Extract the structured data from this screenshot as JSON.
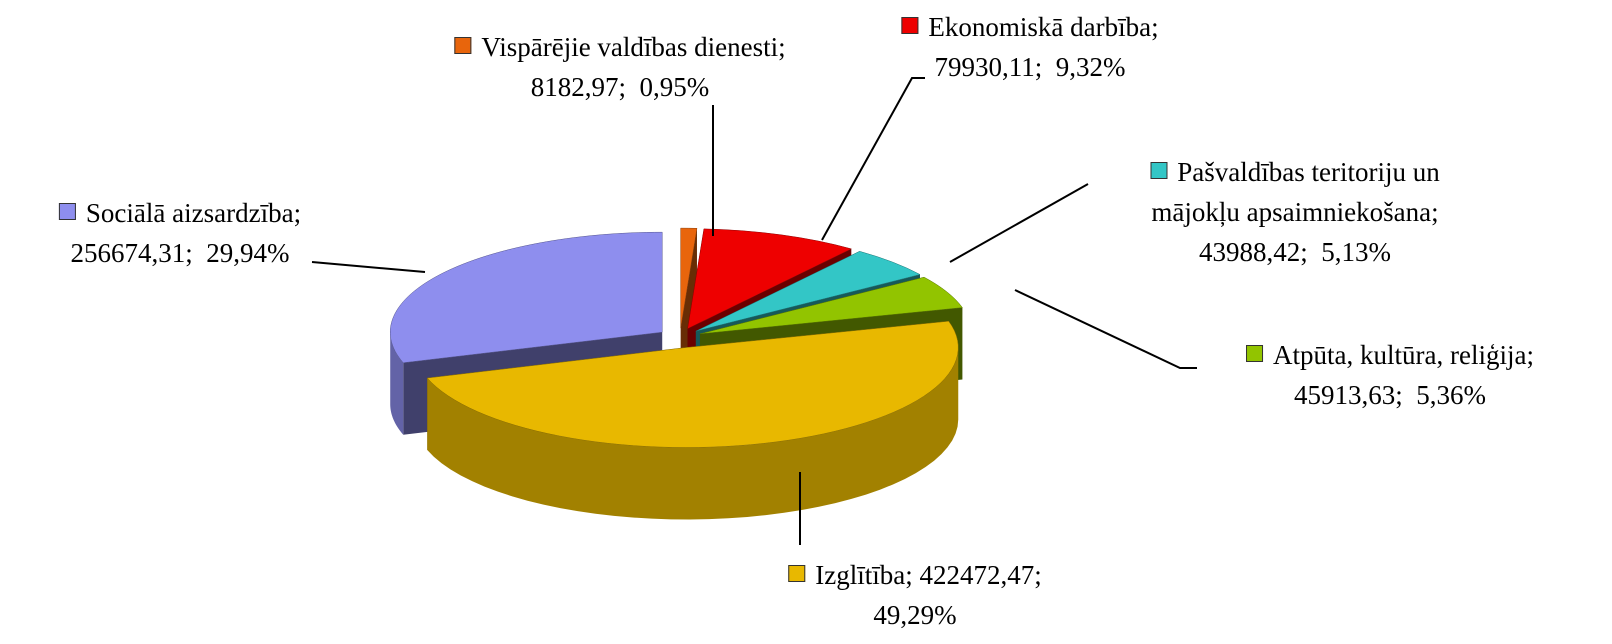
{
  "chart_data": {
    "type": "pie3d",
    "categories": [
      "Vispārējie valdības dienesti",
      "Ekonomiskā darbība",
      "Pašvaldības teritoriju un mājokļu apsaimniekošana",
      "Atpūta, kultūra, reliģija",
      "Izglītība",
      "Sociālā aizsardzība"
    ],
    "values": [
      8182.97,
      79930.11,
      43988.42,
      45913.63,
      422472.47,
      256674.31
    ],
    "value_labels": [
      "8182,97",
      "79930,11",
      "43988,42",
      "45913,63",
      "422472,47",
      "256674,31"
    ],
    "percents": [
      0.95,
      9.32,
      5.13,
      5.36,
      49.29,
      29.94
    ],
    "percent_labels": [
      "0,95%",
      "9,32%",
      "5,13%",
      "5,36%",
      "49,29%",
      "29,94%"
    ],
    "separator": ";",
    "colors": [
      "#e8650c",
      "#ee0000",
      "#33c6c6",
      "#92c400",
      "#e8b800",
      "#8e8eee"
    ]
  }
}
